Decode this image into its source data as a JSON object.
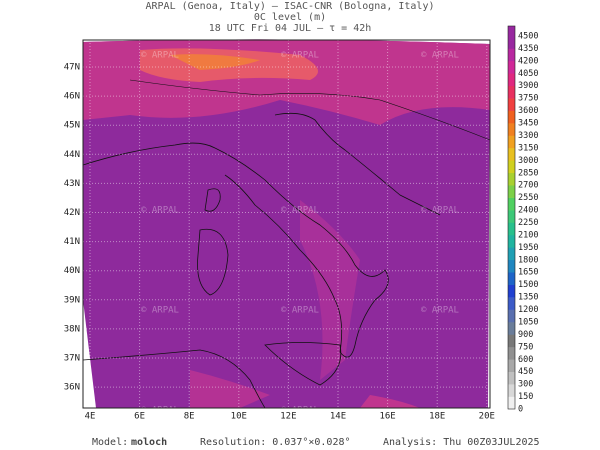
{
  "header": {
    "line1": "ARPAL (Genoa, Italy)  —  ISAC-CNR (Bologna, Italy)",
    "line2": "0C level (m)",
    "line3": "18 UTC Fri 04 JUL  —  τ = 42h"
  },
  "map": {
    "lat_labels": [
      "47N",
      "46N",
      "45N",
      "44N",
      "43N",
      "42N",
      "41N",
      "40N",
      "39N",
      "38N",
      "37N",
      "36N"
    ],
    "lon_labels": [
      "4E",
      "6E",
      "8E",
      "10E",
      "12E",
      "14E",
      "16E",
      "18E",
      "20E"
    ],
    "watermark": "© ARPAL"
  },
  "colorbar": {
    "labels": [
      "0",
      "150",
      "300",
      "450",
      "600",
      "750",
      "900",
      "1050",
      "1200",
      "1350",
      "1500",
      "1650",
      "1800",
      "1950",
      "2100",
      "2250",
      "2400",
      "2550",
      "2700",
      "2850",
      "3000",
      "3150",
      "3300",
      "3450",
      "3600",
      "3750",
      "3900",
      "4050",
      "4200",
      "4350",
      "4500"
    ],
    "colors": [
      "#f0f0f0",
      "#d8d8d8",
      "#c0c0c0",
      "#a8a8a8",
      "#909090",
      "#787878",
      "#6a7d9a",
      "#5a70b0",
      "#3c5bc8",
      "#2040d0",
      "#1e64c8",
      "#1f86c0",
      "#20a0b4",
      "#20b4a0",
      "#28c08c",
      "#3cc878",
      "#50d060",
      "#7cd048",
      "#a8d030",
      "#d0d020",
      "#e8c020",
      "#f0a020",
      "#f08020",
      "#f06020",
      "#f04040",
      "#e83060",
      "#e02880",
      "#d02898",
      "#b828a0",
      "#9828a0"
    ]
  },
  "footer": {
    "model_label": "Model:",
    "model": "moloch",
    "resolution": "Resolution: 0.037°×0.028°",
    "analysis": "Analysis: Thu 00Z03JUL2025"
  }
}
